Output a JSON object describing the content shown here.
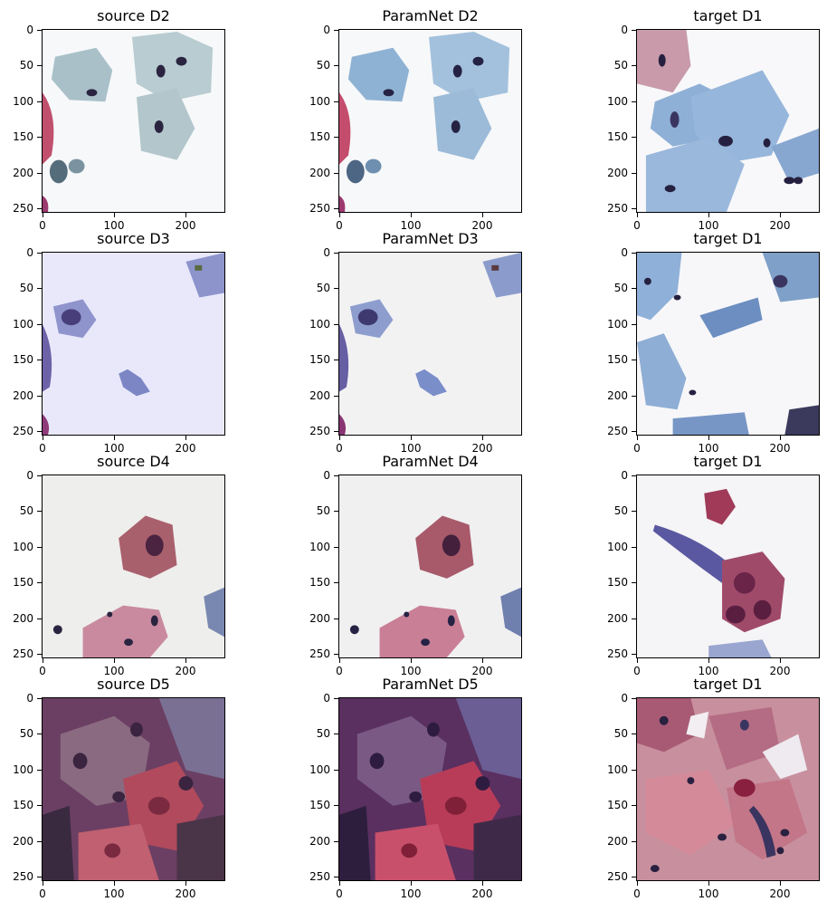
{
  "axes": {
    "y_ticks": [
      "0",
      "50",
      "100",
      "150",
      "200",
      "250"
    ],
    "x_ticks": [
      "0",
      "100",
      "200"
    ]
  },
  "rows": [
    {
      "panels": [
        {
          "title": "source D2"
        },
        {
          "title": "ParamNet D2"
        },
        {
          "title": "target D1"
        }
      ]
    },
    {
      "panels": [
        {
          "title": "source D3"
        },
        {
          "title": "ParamNet D3"
        },
        {
          "title": "target D1"
        }
      ]
    },
    {
      "panels": [
        {
          "title": "source D4"
        },
        {
          "title": "ParamNet D4"
        },
        {
          "title": "target D1"
        }
      ]
    },
    {
      "panels": [
        {
          "title": "source D5"
        },
        {
          "title": "ParamNet D5"
        },
        {
          "title": "target D1"
        }
      ]
    }
  ],
  "colors": {
    "blue_cell": "#8fb0cc",
    "pink_cell": "#c0506e",
    "nucleus": "#2a2440",
    "violet_bg": "#6b3f63"
  }
}
